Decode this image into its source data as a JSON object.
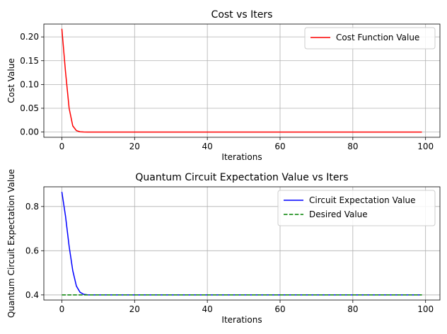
{
  "chart_data": [
    {
      "type": "line",
      "title": "Cost vs Iters",
      "xlabel": "Iterations",
      "ylabel": "Cost Value",
      "xlim": [
        -4.95,
        103.95
      ],
      "ylim": [
        -0.011,
        0.227
      ],
      "xticks": [
        0,
        20,
        40,
        60,
        80,
        100
      ],
      "yticks": [
        0.0,
        0.05,
        0.1,
        0.15,
        0.2
      ],
      "ytick_labels": [
        "0.00",
        "0.05",
        "0.10",
        "0.15",
        "0.20"
      ],
      "grid": true,
      "legend": "top-right",
      "series": [
        {
          "name": "Cost Function Value",
          "color": "#ff0000",
          "style": "solid",
          "x_range": [
            0,
            99
          ],
          "head": [
            0.217,
            0.127,
            0.05,
            0.013,
            0.003,
            0.0005,
            0.0001
          ],
          "tail": 0.0
        }
      ]
    },
    {
      "type": "line",
      "title": "Quantum Circuit Expectation Value vs Iters",
      "xlabel": "Iterations",
      "ylabel": "Quantum Circuit Expectation Value",
      "xlim": [
        -4.95,
        103.95
      ],
      "ylim": [
        0.377,
        0.889
      ],
      "xticks": [
        0,
        20,
        40,
        60,
        80,
        100
      ],
      "yticks": [
        0.4,
        0.6,
        0.8
      ],
      "ytick_labels": [
        "0.4",
        "0.6",
        "0.8"
      ],
      "grid": true,
      "legend": "top-right",
      "series": [
        {
          "name": "Circuit Expectation Value",
          "color": "#0000ff",
          "style": "solid",
          "x_range": [
            0,
            99
          ],
          "head": [
            0.866,
            0.757,
            0.62,
            0.51,
            0.44,
            0.412,
            0.403,
            0.4005,
            0.4001
          ],
          "tail": 0.4
        },
        {
          "name": "Desired Value",
          "color": "#008000",
          "style": "dashed",
          "x_range": [
            0,
            99
          ],
          "head": [],
          "tail": 0.4
        }
      ]
    }
  ]
}
